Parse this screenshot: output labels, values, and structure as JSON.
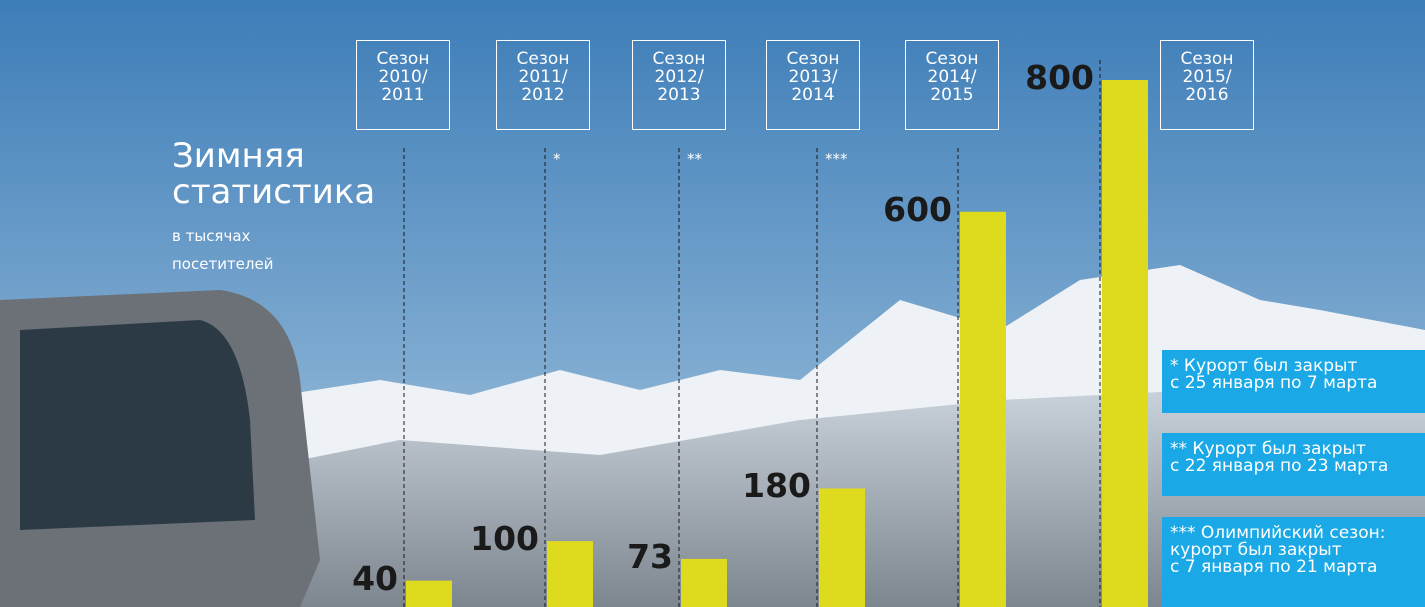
{
  "chart_data": {
    "type": "bar",
    "title": "Зимняя\nстатистика",
    "subtitle": "в тысячах\nпосетителей",
    "categories": [
      "Сезон\n2010/\n2011",
      "Сезон\n2011/\n2012",
      "Сезон\n2012/\n2013",
      "Сезон\n2013/\n2014",
      "Сезон\n2014/\n2015",
      "Сезон\n2015/\n2016"
    ],
    "values": [
      40,
      100,
      73,
      180,
      600,
      800
    ],
    "markers": [
      null,
      "*",
      "**",
      "***",
      null,
      null
    ],
    "color": "#dedb1f",
    "ylim": [
      0,
      800
    ],
    "footnotes": [
      "* Курорт был закрыт\n с 25 января по 7 марта",
      "** Курорт был  закрыт\nс 22 января по 23 марта",
      "*** Олимпийский сезон:\nкурорт был закрыт\nс 7 января по 21 марта"
    ]
  }
}
